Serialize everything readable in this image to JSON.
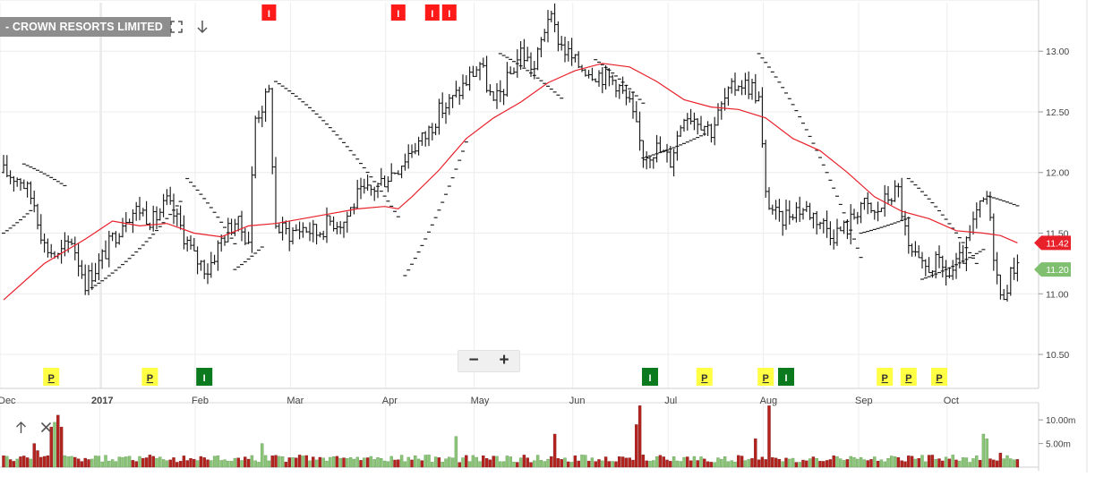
{
  "window": {
    "title_tag": "- CROWN RESORTS LIMITED"
  },
  "toolbar": {
    "fullscreen_icon": "expand-icon",
    "download_icon": "arrow-down-icon",
    "zoom_out_label": "−",
    "zoom_in_label": "+"
  },
  "volume_tools": {
    "up_icon": "arrow-up-icon",
    "close_icon": "close-icon"
  },
  "colors": {
    "price_bar": "#111111",
    "moving_average": "#e8202a",
    "sar_dots": "#222222",
    "current_price_badge": "#e8202a",
    "ma_value_badge": "#7fbf6f",
    "event_red": "#ff1a1a",
    "event_green": "#0b7a1e",
    "event_yellow": "#ffff44",
    "volume_up": "#8cc57a",
    "volume_down": "#b5231f",
    "grid": "#ececec"
  },
  "chart_data": {
    "type": "ohlc",
    "x_labels": [
      "Dec",
      "2017",
      "Feb",
      "Mar",
      "Apr",
      "May",
      "Jun",
      "Jul",
      "Aug",
      "Sep",
      "Oct"
    ],
    "y_ticks": [
      "13.00",
      "12.50",
      "12.00",
      "11.50",
      "11.00",
      "10.50"
    ],
    "ylim": [
      10.22,
      13.4
    ],
    "grid": true,
    "price_badges": [
      {
        "value": "11.42",
        "color": "#e8202a",
        "price": 11.42
      },
      {
        "value": "11.20",
        "color": "#7fbf6f",
        "price": 11.2
      }
    ],
    "ohlc_keypoints": [
      [
        0,
        12.0
      ],
      [
        5,
        11.95
      ],
      [
        9,
        11.75
      ],
      [
        12,
        11.4
      ],
      [
        16,
        11.3
      ],
      [
        20,
        11.45
      ],
      [
        24,
        11.1
      ],
      [
        28,
        11.25
      ],
      [
        32,
        11.45
      ],
      [
        36,
        11.65
      ],
      [
        40,
        11.7
      ],
      [
        44,
        11.6
      ],
      [
        48,
        11.75
      ],
      [
        52,
        11.55
      ],
      [
        56,
        11.3
      ],
      [
        60,
        11.2
      ],
      [
        64,
        11.45
      ],
      [
        68,
        11.6
      ],
      [
        72,
        11.45
      ],
      [
        74,
        12.45
      ],
      [
        78,
        12.65
      ],
      [
        80,
        11.55
      ],
      [
        84,
        11.5
      ],
      [
        88,
        11.55
      ],
      [
        92,
        11.5
      ],
      [
        96,
        11.6
      ],
      [
        100,
        11.6
      ],
      [
        104,
        11.8
      ],
      [
        108,
        11.85
      ],
      [
        112,
        11.95
      ],
      [
        116,
        12.05
      ],
      [
        120,
        12.2
      ],
      [
        124,
        12.3
      ],
      [
        128,
        12.5
      ],
      [
        132,
        12.6
      ],
      [
        136,
        12.75
      ],
      [
        140,
        12.9
      ],
      [
        144,
        12.55
      ],
      [
        148,
        12.75
      ],
      [
        152,
        13.0
      ],
      [
        156,
        12.85
      ],
      [
        160,
        13.3
      ],
      [
        164,
        13.05
      ],
      [
        168,
        12.9
      ],
      [
        172,
        12.85
      ],
      [
        176,
        12.8
      ],
      [
        180,
        12.75
      ],
      [
        184,
        12.55
      ],
      [
        188,
        12.15
      ],
      [
        192,
        12.2
      ],
      [
        196,
        12.1
      ],
      [
        200,
        12.5
      ],
      [
        204,
        12.45
      ],
      [
        208,
        12.35
      ],
      [
        212,
        12.6
      ],
      [
        216,
        12.75
      ],
      [
        220,
        12.7
      ],
      [
        222,
        12.6
      ],
      [
        224,
        11.8
      ],
      [
        228,
        11.6
      ],
      [
        232,
        11.7
      ],
      [
        236,
        11.7
      ],
      [
        240,
        11.6
      ],
      [
        244,
        11.5
      ],
      [
        248,
        11.55
      ],
      [
        252,
        11.75
      ],
      [
        256,
        11.65
      ],
      [
        260,
        11.8
      ],
      [
        263,
        11.85
      ],
      [
        266,
        11.35
      ],
      [
        270,
        11.2
      ],
      [
        274,
        11.25
      ],
      [
        278,
        11.15
      ],
      [
        282,
        11.3
      ],
      [
        286,
        11.65
      ],
      [
        289,
        11.8
      ],
      [
        291,
        11.35
      ],
      [
        293,
        10.95
      ],
      [
        296,
        11.15
      ],
      [
        298,
        11.3
      ]
    ],
    "ohlc_count": 299,
    "moving_average": [
      [
        0,
        10.95
      ],
      [
        12,
        11.25
      ],
      [
        24,
        11.45
      ],
      [
        32,
        11.6
      ],
      [
        40,
        11.56
      ],
      [
        48,
        11.58
      ],
      [
        56,
        11.5
      ],
      [
        64,
        11.47
      ],
      [
        72,
        11.56
      ],
      [
        80,
        11.58
      ],
      [
        88,
        11.62
      ],
      [
        96,
        11.66
      ],
      [
        104,
        11.7
      ],
      [
        112,
        11.72
      ],
      [
        116,
        11.7
      ],
      [
        120,
        11.8
      ],
      [
        128,
        12.02
      ],
      [
        136,
        12.28
      ],
      [
        144,
        12.45
      ],
      [
        152,
        12.58
      ],
      [
        160,
        12.74
      ],
      [
        168,
        12.84
      ],
      [
        176,
        12.9
      ],
      [
        184,
        12.87
      ],
      [
        192,
        12.75
      ],
      [
        200,
        12.6
      ],
      [
        208,
        12.54
      ],
      [
        216,
        12.52
      ],
      [
        224,
        12.45
      ],
      [
        232,
        12.28
      ],
      [
        240,
        12.18
      ],
      [
        248,
        12.0
      ],
      [
        256,
        11.8
      ],
      [
        264,
        11.68
      ],
      [
        272,
        11.62
      ],
      [
        280,
        11.52
      ],
      [
        288,
        11.5
      ],
      [
        293,
        11.48
      ],
      [
        298,
        11.42
      ]
    ],
    "sar_segments": [
      [
        0,
        8,
        11.5,
        0.02,
        1
      ],
      [
        6,
        18,
        12.07,
        -0.012,
        -1
      ],
      [
        26,
        52,
        11.05,
        0.018,
        1
      ],
      [
        54,
        68,
        11.95,
        -0.03,
        -1
      ],
      [
        68,
        76,
        11.2,
        0.02,
        1
      ],
      [
        80,
        116,
        12.75,
        -0.018,
        -1
      ],
      [
        118,
        136,
        11.15,
        0.045,
        1
      ],
      [
        146,
        164,
        12.98,
        -0.015,
        -1
      ],
      [
        174,
        188,
        12.93,
        -0.02,
        -1
      ],
      [
        188,
        206,
        12.12,
        0.008,
        1
      ],
      [
        222,
        252,
        12.98,
        -0.035,
        -1
      ],
      [
        252,
        266,
        11.5,
        0.007,
        1
      ],
      [
        266,
        286,
        11.95,
        -0.025,
        -1
      ],
      [
        270,
        288,
        11.12,
        0.01,
        1
      ],
      [
        290,
        298,
        11.8,
        -0.008,
        -1
      ]
    ],
    "event_markers_top": [
      {
        "label": "I",
        "color": "#ff1a1a",
        "index": 78
      },
      {
        "label": "I",
        "color": "#ff1a1a",
        "index": 116
      },
      {
        "label": "I",
        "color": "#ff1a1a",
        "index": 126
      },
      {
        "label": "I",
        "color": "#ff1a1a",
        "index": 131
      }
    ],
    "event_markers_bottom": [
      {
        "label": "P",
        "color": "#ffff44",
        "index": 14
      },
      {
        "label": "P",
        "color": "#ffff44",
        "index": 43
      },
      {
        "label": "I",
        "color": "#0b7a1e",
        "index": 59
      },
      {
        "label": "I",
        "color": "#0b7a1e",
        "index": 190
      },
      {
        "label": "P",
        "color": "#ffff44",
        "index": 206
      },
      {
        "label": "P",
        "color": "#ffff44",
        "index": 224
      },
      {
        "label": "I",
        "color": "#0b7a1e",
        "index": 230
      },
      {
        "label": "P",
        "color": "#ffff44",
        "index": 259
      },
      {
        "label": "P",
        "color": "#ffff44",
        "index": 266
      },
      {
        "label": "P",
        "color": "#ffff44",
        "index": 275
      }
    ],
    "volume": {
      "y_ticks": [
        "10.00m",
        "5.00m"
      ],
      "ylim": [
        0,
        12.5
      ],
      "spikes": [
        [
          14,
          8.5
        ],
        [
          15,
          9.5
        ],
        [
          16,
          11.0
        ],
        [
          17,
          8.5
        ],
        [
          9,
          5.0
        ],
        [
          10,
          3.5
        ],
        [
          76,
          5.0
        ],
        [
          133,
          6.5
        ],
        [
          162,
          7.0
        ],
        [
          186,
          9.0
        ],
        [
          187,
          13.0
        ],
        [
          221,
          6.0
        ],
        [
          225,
          13.0
        ],
        [
          288,
          7.0
        ],
        [
          289,
          6.0
        ],
        [
          293,
          3.0
        ]
      ]
    }
  }
}
